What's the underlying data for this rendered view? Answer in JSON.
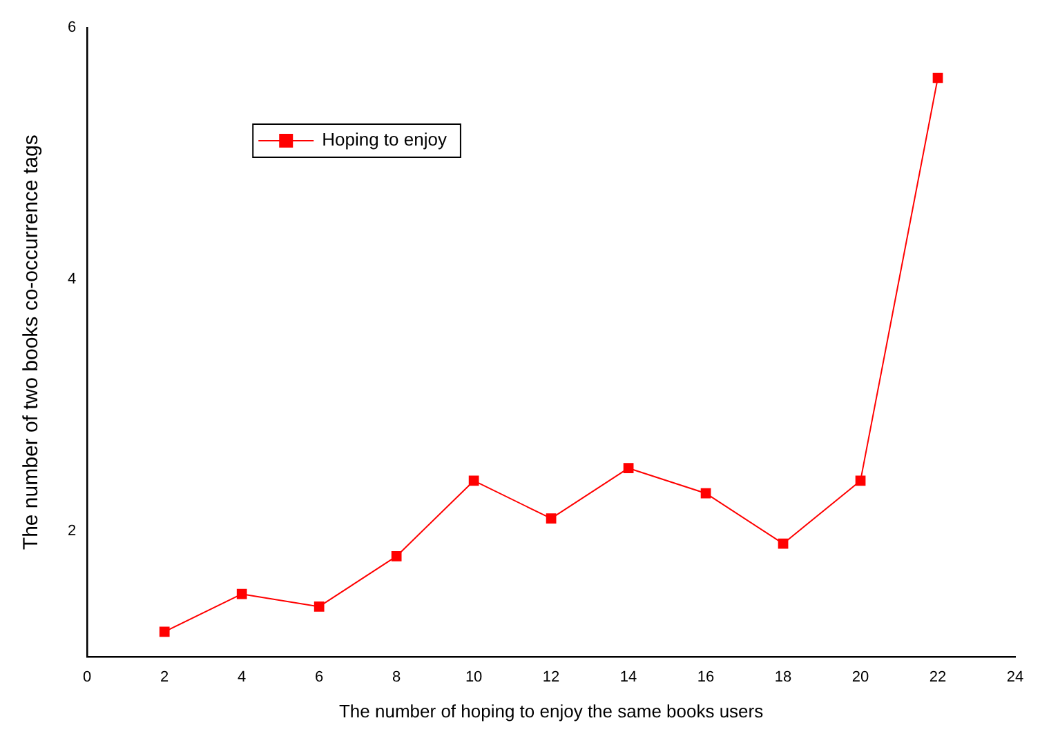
{
  "chart_data": {
    "type": "line",
    "xlabel": "The number of hoping to enjoy the same books users",
    "ylabel": "The number of two books co-occurrence tags",
    "x": [
      2,
      4,
      6,
      8,
      10,
      12,
      14,
      16,
      18,
      20,
      22
    ],
    "series": [
      {
        "name": "Hoping to enjoy",
        "color": "#ff0000",
        "values": [
          1.2,
          1.5,
          1.4,
          1.8,
          2.4,
          2.1,
          2.5,
          2.3,
          1.9,
          2.4,
          5.6
        ]
      }
    ],
    "xlim": [
      0,
      24
    ],
    "xticks": [
      0,
      2,
      4,
      6,
      8,
      10,
      12,
      14,
      16,
      18,
      20,
      22,
      24
    ],
    "ylim": [
      1,
      6
    ],
    "yticks": [
      2,
      4,
      6
    ],
    "grid": false,
    "legend": "top left",
    "marker": "square",
    "line_style": "solid"
  }
}
